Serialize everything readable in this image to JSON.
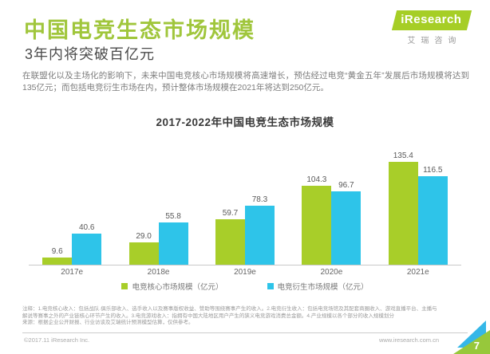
{
  "header": {
    "title": "中国电竞生态市场规模",
    "subtitle": "3年内将突破百亿元",
    "intro": "在联盟化以及主场化的影响下，未来中国电竞核心市场规模将高速增长，预估经过电竞“黄金五年”发展后市场规模将达到135亿元；而包括电竞衍生市场在内，预计整体市场规模在2021年将达到250亿元。",
    "logo": {
      "brand": "iResearch",
      "brand_cn": "艾瑞咨询"
    }
  },
  "chart_data": {
    "type": "bar",
    "title": "2017-2022年中国电竞生态市场规模",
    "categories": [
      "2017e",
      "2018e",
      "2019e",
      "2020e",
      "2021e"
    ],
    "series": [
      {
        "name": "电竞核心市场规模（亿元）",
        "color": "#a8ce29",
        "values": [
          "9.6",
          "29.0",
          "59.7",
          "104.3",
          "135.4"
        ]
      },
      {
        "name": "电竞衍生市场规模（亿元）",
        "color": "#2ec4e9",
        "values": [
          "40.6",
          "55.8",
          "78.3",
          "96.7",
          "116.5"
        ]
      }
    ],
    "ylabel": "亿元",
    "ylim": [
      0,
      150
    ],
    "grid": false,
    "legend_position": "bottom",
    "value_labels": true
  },
  "notes": {
    "line1": "注释：1.电竞核心收入：包括战队.俱乐部收入、选手收入以及赛事版权收益、赞助等围绕赛事产生的收入。2.电竞衍生收入：包括电竞场馆及其配套商圈收入、游戏直播平台、主播与",
    "line2": "解说等赛事之外的产业链核心环节产生的收入。3.电竞游戏收入：指拥有中国大陆地区用户产生的狭义电竞游戏消费总金额。4.产业规模以各个部分的收入规模划分",
    "line3": "来源：根据企业公开财报、行业访谈及艾瑞统计预测模型估算，仅供参考。"
  },
  "footer": {
    "copyright": "©2017.11 iResearch Inc.",
    "website": "www.iresearch.com.cn",
    "page_number": "7"
  }
}
